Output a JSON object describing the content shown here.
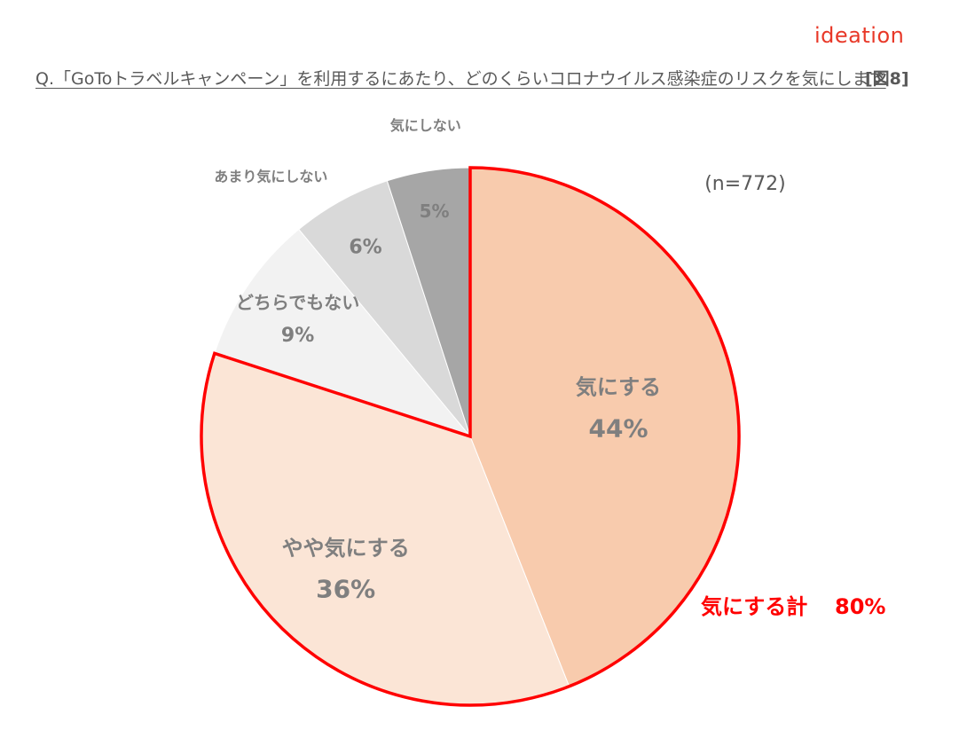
{
  "header": {
    "logo_text": "ideation",
    "question": "Q.「GoToトラベルキャンペーン」を利用するにあたり、どのくらいコロナウイルス感染症のリスクを気にします",
    "figure_label": "[図8]"
  },
  "chart_data": {
    "type": "pie",
    "sample_size_label": "(n=772)",
    "start_angle_deg": 0,
    "direction": "clockwise",
    "slices": [
      {
        "label": "気にする",
        "value": 44,
        "value_label": "44%",
        "color": "#f8cbad"
      },
      {
        "label": "やや気にする",
        "value": 36,
        "value_label": "36%",
        "color": "#fbe5d6"
      },
      {
        "label": "どちらでもない",
        "value": 9,
        "value_label": "9%",
        "color": "#f2f2f2"
      },
      {
        "label": "あまり気にしない",
        "value": 6,
        "value_label": "6%",
        "color": "#d9d9d9"
      },
      {
        "label": "気にしない",
        "value": 5,
        "value_label": "5%",
        "color": "#a6a6a6"
      }
    ],
    "highlight": {
      "slices": [
        "気にする",
        "やや気にする"
      ],
      "label": "気にする計",
      "value": 80,
      "value_label": "80%",
      "color": "#ff0000"
    },
    "label_color": "#7f7f7f"
  }
}
